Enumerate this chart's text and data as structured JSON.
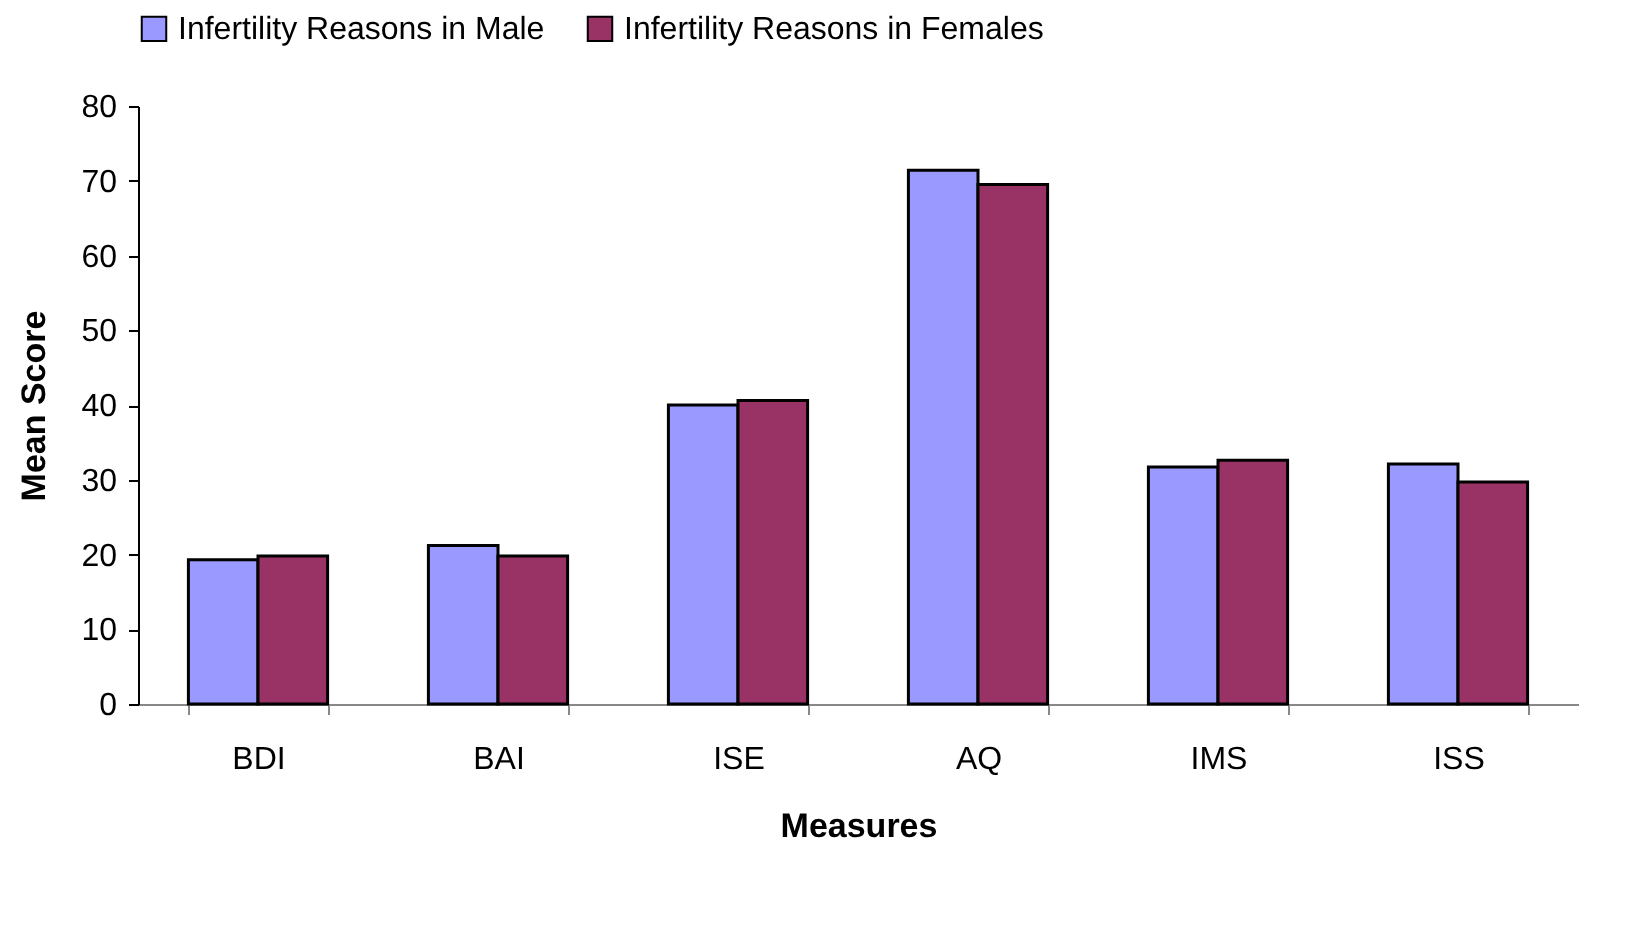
{
  "chart_data": {
    "type": "bar",
    "xlabel": "Measures",
    "ylabel": "Mean Score",
    "categories": [
      "BDI",
      "BAI",
      "ISE",
      "AQ",
      "IMS",
      "ISS"
    ],
    "series": [
      {
        "name": "Infertility Reasons in Male",
        "color": "#9999ff",
        "values": [
          19.3,
          21.2,
          40.0,
          71.4,
          31.7,
          32.1
        ]
      },
      {
        "name": "Infertility Reasons in Females",
        "color": "#993366",
        "values": [
          19.8,
          19.8,
          40.6,
          69.5,
          32.6,
          29.7
        ]
      }
    ],
    "ylim": [
      0,
      80
    ],
    "yticks": [
      0,
      10,
      20,
      30,
      40,
      50,
      60,
      70,
      80
    ],
    "grid": false,
    "legend": "top"
  }
}
